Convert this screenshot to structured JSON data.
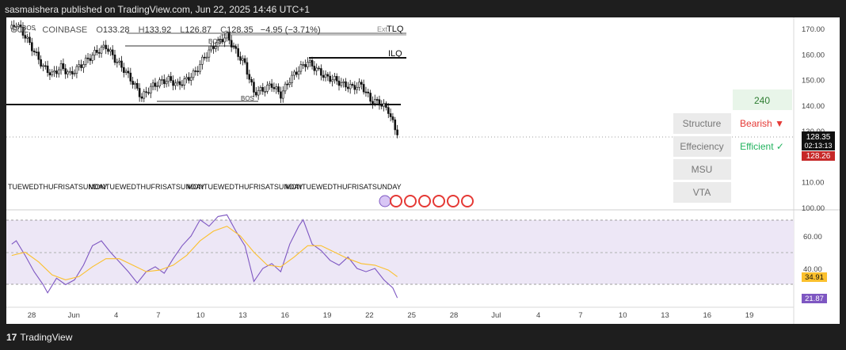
{
  "header": {
    "text": "sasmaishera published on TradingView.com, Jun 22, 2025 14:46 UTC+1"
  },
  "footer": {
    "brand": "TradingView"
  },
  "symbol": {
    "name": "SOL",
    "separator": "·",
    "exchange": "COINBASE",
    "open_label": "O",
    "open": "133.28",
    "high_label": "H",
    "high": "133.92",
    "low_label": "L",
    "low": "126.87",
    "close_label": "C",
    "close": "128.35",
    "change": "−4.95 (−3.71%)"
  },
  "annotations": {
    "tlq": "TLQ",
    "ilq": "ILQ",
    "ext": "Ext",
    "bos": "BOS",
    "sos": "SOS",
    "day_labels_group": "TUEWEDTHUFRISATSUNDAY",
    "day_labels_group2": "MONTUEWEDTHUFRISATSUNDAY"
  },
  "price_badges": {
    "current": "128.35",
    "countdown": "02:13:13",
    "secondary": "128.26"
  },
  "rsi_badges": {
    "signal": "34.91",
    "value": "21.87"
  },
  "panel": {
    "timeframe": "240",
    "rows": [
      {
        "label": "Structure",
        "value": "Bearish ▼",
        "color": "#e53935"
      },
      {
        "label": "Effeciency",
        "value": "Efficient ✓",
        "color": "#22b35e"
      },
      {
        "label": "MSU",
        "value": ""
      },
      {
        "label": "VTA",
        "value": ""
      }
    ]
  },
  "chart_data": [
    {
      "type": "candlestick",
      "title": "",
      "price_axis_ticks": [
        170,
        160,
        150,
        140,
        130,
        120,
        110,
        100
      ],
      "ylim": [
        100,
        173
      ],
      "time_axis_labels": [
        "28",
        "Jun",
        "4",
        "7",
        "10",
        "13",
        "16",
        "19",
        "22",
        "25",
        "28",
        "Jul",
        "4",
        "7",
        "10",
        "13",
        "16",
        "19"
      ],
      "levels": [
        {
          "name": "TLQ",
          "price": 168.0
        },
        {
          "name": "ILQ",
          "price": 158.8
        },
        {
          "name": "BOS",
          "price": 162.2
        },
        {
          "name": "BOS",
          "price": 140.5
        },
        {
          "name": "level",
          "price": 140.5
        }
      ],
      "close_path": [
        [
          1,
          170
        ],
        [
          3,
          172
        ],
        [
          7,
          167
        ],
        [
          11,
          161
        ],
        [
          15,
          155
        ],
        [
          19,
          152
        ],
        [
          23,
          155
        ],
        [
          27,
          152
        ],
        [
          31,
          155
        ],
        [
          35,
          158
        ],
        [
          39,
          161
        ],
        [
          43,
          163
        ],
        [
          47,
          158
        ],
        [
          51,
          154
        ],
        [
          55,
          149
        ],
        [
          59,
          143
        ],
        [
          63,
          147
        ],
        [
          67,
          149
        ],
        [
          71,
          150
        ],
        [
          75,
          148
        ],
        [
          79,
          150
        ],
        [
          83,
          153
        ],
        [
          87,
          159
        ],
        [
          91,
          163
        ],
        [
          95,
          166
        ],
        [
          97,
          167
        ],
        [
          101,
          161
        ],
        [
          105,
          156
        ],
        [
          109,
          145
        ],
        [
          113,
          146
        ],
        [
          117,
          148
        ],
        [
          121,
          144
        ],
        [
          125,
          150
        ],
        [
          129,
          154
        ],
        [
          133,
          157
        ],
        [
          137,
          154
        ],
        [
          141,
          151
        ],
        [
          145,
          150
        ],
        [
          149,
          148
        ],
        [
          153,
          147
        ],
        [
          157,
          148
        ],
        [
          161,
          142
        ],
        [
          165,
          141
        ],
        [
          169,
          138
        ],
        [
          171,
          133
        ],
        [
          173,
          128.35
        ]
      ]
    },
    {
      "type": "line",
      "title": "",
      "ylim": [
        17,
        76
      ],
      "axis_ticks": [
        60,
        40
      ],
      "bands": [
        70,
        50,
        30
      ],
      "series": [
        {
          "values": [
            [
              1,
              55
            ],
            [
              3,
              57
            ],
            [
              7,
              48
            ],
            [
              11,
              38
            ],
            [
              15,
              30
            ],
            [
              17,
              25
            ],
            [
              21,
              34
            ],
            [
              25,
              30
            ],
            [
              29,
              33
            ],
            [
              33,
              42
            ],
            [
              37,
              54
            ],
            [
              41,
              57
            ],
            [
              45,
              50
            ],
            [
              49,
              44
            ],
            [
              53,
              38
            ],
            [
              57,
              31
            ],
            [
              61,
              38
            ],
            [
              65,
              41
            ],
            [
              69,
              37
            ],
            [
              73,
              46
            ],
            [
              77,
              54
            ],
            [
              81,
              60
            ],
            [
              85,
              70
            ],
            [
              89,
              66
            ],
            [
              93,
              72
            ],
            [
              97,
              73
            ],
            [
              101,
              63
            ],
            [
              105,
              54
            ],
            [
              109,
              32
            ],
            [
              113,
              40
            ],
            [
              117,
              43
            ],
            [
              121,
              38
            ],
            [
              125,
              55
            ],
            [
              129,
              66
            ],
            [
              131,
              70
            ],
            [
              135,
              55
            ],
            [
              139,
              51
            ],
            [
              143,
              45
            ],
            [
              147,
              42
            ],
            [
              151,
              47
            ],
            [
              155,
              40
            ],
            [
              159,
              38
            ],
            [
              163,
              40
            ],
            [
              167,
              33
            ],
            [
              171,
              28
            ],
            [
              173,
              21.87
            ]
          ]
        },
        {
          "values": [
            [
              1,
              48
            ],
            [
              7,
              50
            ],
            [
              13,
              44
            ],
            [
              19,
              36
            ],
            [
              25,
              33
            ],
            [
              31,
              35
            ],
            [
              37,
              41
            ],
            [
              43,
              46
            ],
            [
              49,
              46
            ],
            [
              55,
              42
            ],
            [
              61,
              38
            ],
            [
              67,
              39
            ],
            [
              73,
              42
            ],
            [
              79,
              48
            ],
            [
              85,
              57
            ],
            [
              91,
              63
            ],
            [
              97,
              66
            ],
            [
              103,
              60
            ],
            [
              109,
              50
            ],
            [
              115,
              42
            ],
            [
              121,
              41
            ],
            [
              127,
              47
            ],
            [
              133,
              54
            ],
            [
              139,
              54
            ],
            [
              145,
              50
            ],
            [
              151,
              46
            ],
            [
              157,
              43
            ],
            [
              163,
              42
            ],
            [
              169,
              39
            ],
            [
              173,
              34.91
            ]
          ]
        }
      ]
    }
  ]
}
